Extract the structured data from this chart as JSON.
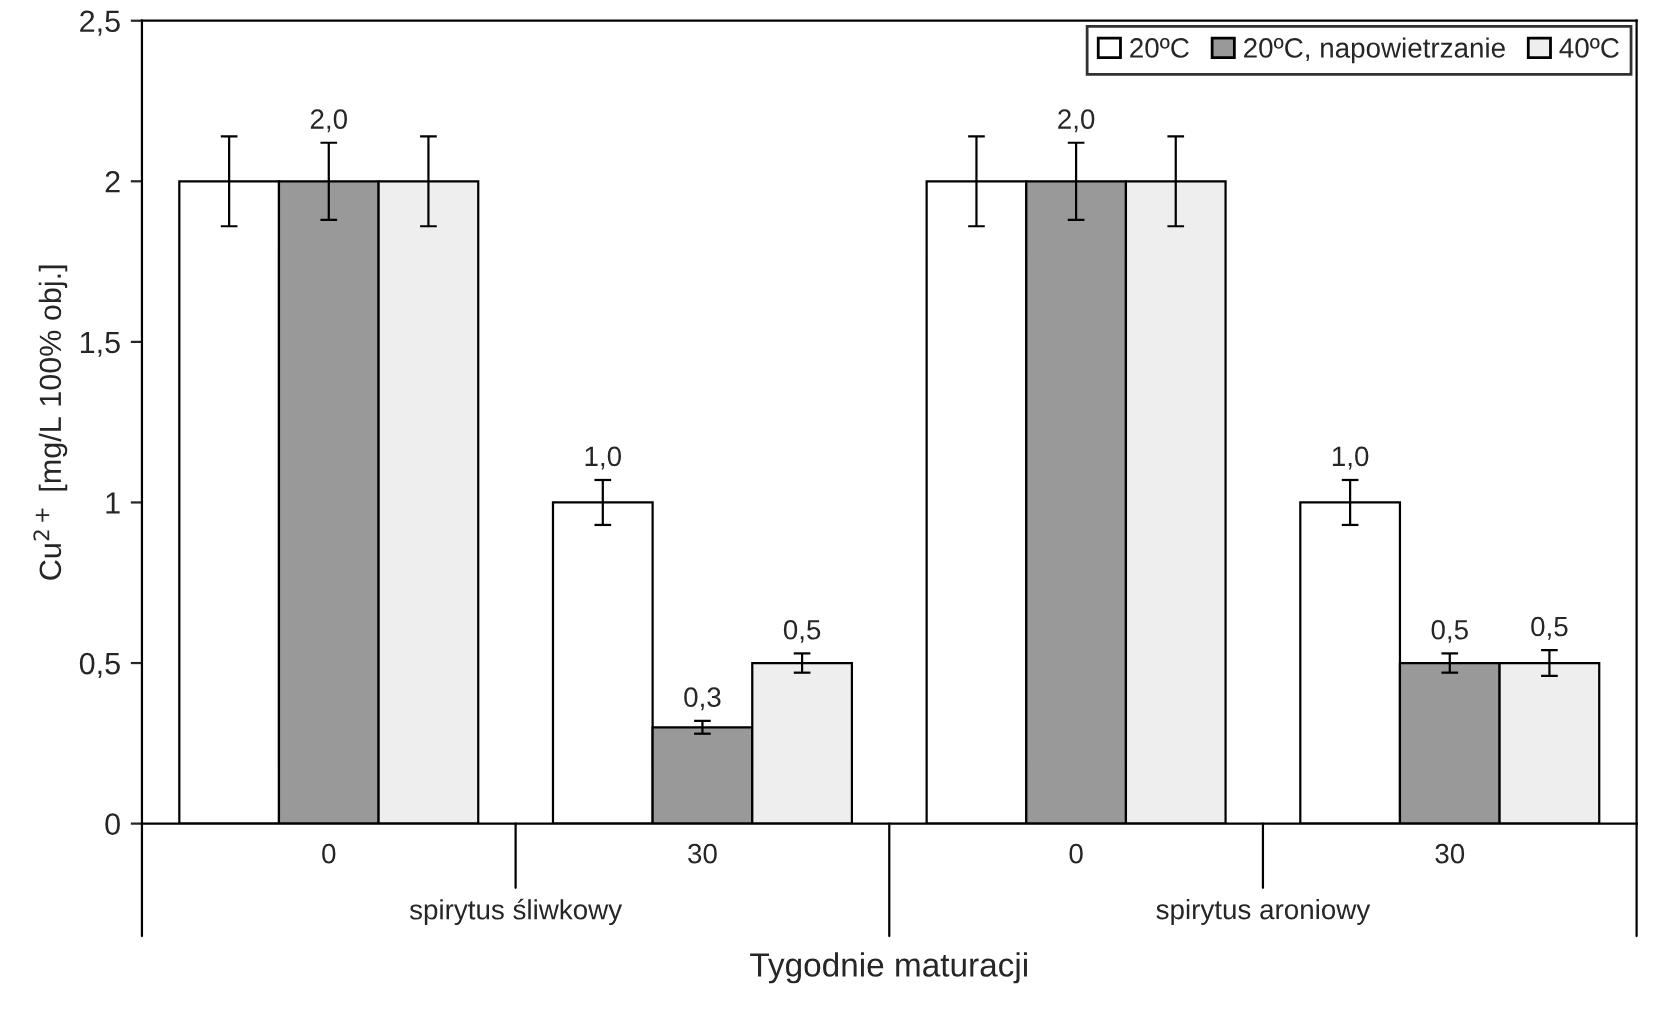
{
  "chart_data": {
    "type": "bar",
    "xlabel": "Tygodnie maturacji",
    "ylabel": "Cu$^{2+}$ [mg/L 100% obj.]",
    "categories": [
      "0",
      "30",
      "0",
      "30"
    ],
    "series": [
      {
        "name": "20ºC",
        "color": "#ffffff",
        "values": [
          2.0,
          1.0,
          2.0,
          1.0
        ],
        "errors": [
          0.14,
          0.07,
          0.14,
          0.07
        ],
        "value_labels": [
          null,
          "1,0",
          null,
          "1,0"
        ]
      },
      {
        "name": "20ºC, napowietrzanie",
        "color": "#999999",
        "values": [
          2.0,
          0.3,
          2.0,
          0.5
        ],
        "errors": [
          0.12,
          0.02,
          0.12,
          0.03
        ],
        "value_labels": [
          "2,0",
          "0,3",
          "2,0",
          "0,5"
        ]
      },
      {
        "name": "40ºC",
        "color": "#eeeeee",
        "values": [
          2.0,
          0.5,
          2.0,
          0.5
        ],
        "errors": [
          0.14,
          0.03,
          0.14,
          0.04
        ],
        "value_labels": [
          null,
          "0,5",
          null,
          "0,5"
        ]
      }
    ],
    "annotations": [
      "spirytus śliwkowy",
      "spirytus aroniowy"
    ],
    "ylim": [
      0,
      2.5
    ],
    "yticks": [
      0,
      {
        "value": 0.5,
        "label": "0,5"
      },
      1,
      {
        "value": 1.5,
        "label": "1,5"
      },
      2,
      {
        "value": 2.5,
        "label": "2,5"
      }
    ],
    "grid": false,
    "legend": "top right"
  }
}
